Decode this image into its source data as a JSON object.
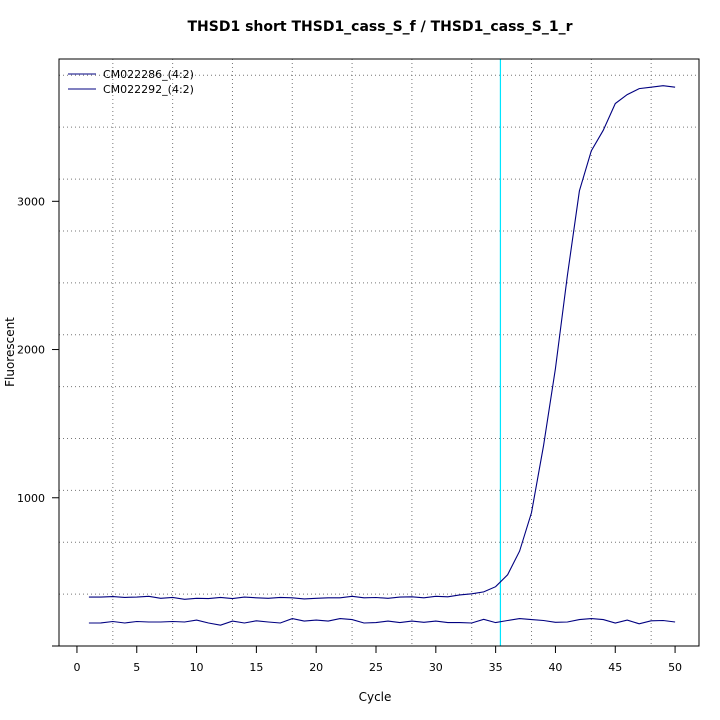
{
  "chart_data": {
    "type": "line",
    "title": "THSD1 short THSD1_cass_S_f / THSD1_cass_S_1_r",
    "xlabel": "Cycle",
    "ylabel": "Fluorescent",
    "xlim": [
      -1.5,
      52.0
    ],
    "ylim": [
      0,
      3960
    ],
    "xticks": [
      0,
      5,
      10,
      15,
      20,
      25,
      30,
      35,
      40,
      45,
      50
    ],
    "yticks": [
      1000,
      2000,
      3000
    ],
    "x_gridlines": [
      3,
      8,
      13,
      18,
      23,
      28,
      33,
      38,
      43,
      48
    ],
    "y_gridlines": [
      0,
      350,
      700,
      1050,
      1400,
      1750,
      2100,
      2450,
      2800,
      3150,
      3500,
      3850
    ],
    "threshold_x": 35.4,
    "threshold_color": "#00e5ff",
    "series_color": "#000080",
    "legend_position": "top-left",
    "x": [
      1,
      2,
      3,
      4,
      5,
      6,
      7,
      8,
      9,
      10,
      11,
      12,
      13,
      14,
      15,
      16,
      17,
      18,
      19,
      20,
      21,
      22,
      23,
      24,
      25,
      26,
      27,
      28,
      29,
      30,
      31,
      32,
      33,
      34,
      35,
      36,
      37,
      38,
      39,
      40,
      41,
      42,
      43,
      44,
      45,
      46,
      47,
      48,
      49,
      50
    ],
    "series": [
      {
        "name": "CM022286_(4:2)",
        "values": [
          330,
          330,
          333,
          328,
          330,
          335,
          322,
          328,
          315,
          322,
          320,
          328,
          320,
          330,
          325,
          322,
          328,
          325,
          318,
          322,
          325,
          325,
          335,
          325,
          327,
          322,
          330,
          332,
          325,
          335,
          332,
          345,
          352,
          365,
          400,
          480,
          640,
          900,
          1350,
          1870,
          2500,
          3070,
          3340,
          3480,
          3660,
          3720,
          3760,
          3770,
          3780,
          3770
        ]
      },
      {
        "name": "CM022292_(4:2)",
        "values": [
          155,
          156,
          165,
          155,
          165,
          162,
          162,
          165,
          162,
          175,
          155,
          140,
          168,
          155,
          170,
          162,
          155,
          185,
          168,
          175,
          168,
          185,
          178,
          155,
          158,
          168,
          158,
          168,
          160,
          168,
          158,
          158,
          155,
          180,
          158,
          172,
          185,
          178,
          172,
          160,
          162,
          178,
          185,
          178,
          155,
          175,
          150,
          170,
          172,
          162
        ]
      }
    ]
  }
}
